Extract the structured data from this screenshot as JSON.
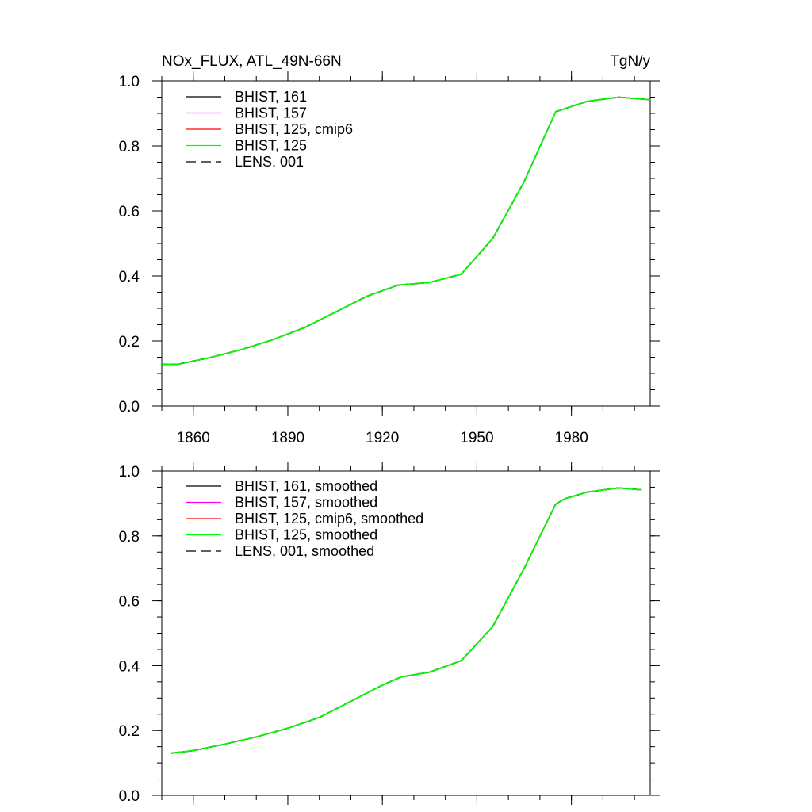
{
  "chart_data": [
    {
      "type": "line",
      "title": "NOx_FLUX, ATL_49N-66N",
      "units": "TgN/y",
      "xlabel": "",
      "ylabel": "",
      "xlim": [
        1850,
        2005
      ],
      "ylim": [
        0,
        1
      ],
      "xticks": [
        1860,
        1890,
        1920,
        1950,
        1980
      ],
      "xtick_labels": [
        "1860",
        "1890",
        "1920",
        "1950",
        "1980"
      ],
      "yticks": [
        0,
        0.2,
        0.4,
        0.6,
        0.8,
        1.0
      ],
      "ytick_labels": [
        "0.0",
        "0.2",
        "0.4",
        "0.6",
        "0.8",
        "1.0"
      ],
      "x": [
        1850,
        1855,
        1865,
        1875,
        1885,
        1895,
        1905,
        1915,
        1925,
        1935,
        1945,
        1955,
        1965,
        1975,
        1985,
        1995,
        2005
      ],
      "series": [
        {
          "name": "BHIST, 161",
          "color": "#000000",
          "dash": "solid",
          "values": [
            0.128,
            0.128,
            0.148,
            0.173,
            0.203,
            0.24,
            0.288,
            0.337,
            0.372,
            0.38,
            0.405,
            0.515,
            0.69,
            0.905,
            0.937,
            0.95,
            0.942
          ]
        },
        {
          "name": "BHIST, 157",
          "color": "#ff00ff",
          "dash": "solid",
          "values": [
            0.128,
            0.128,
            0.148,
            0.173,
            0.203,
            0.24,
            0.288,
            0.337,
            0.372,
            0.38,
            0.405,
            0.515,
            0.69,
            0.905,
            0.937,
            0.95,
            0.942
          ]
        },
        {
          "name": "BHIST, 125, cmip6",
          "color": "#ff0000",
          "dash": "solid",
          "values": [
            0.128,
            0.128,
            0.148,
            0.173,
            0.203,
            0.24,
            0.288,
            0.337,
            0.372,
            0.38,
            0.405,
            0.515,
            0.69,
            0.905,
            0.937,
            0.95,
            0.942
          ]
        },
        {
          "name": "BHIST, 125",
          "color": "#00ff00",
          "dash": "solid",
          "values": [
            0.128,
            0.128,
            0.148,
            0.173,
            0.203,
            0.24,
            0.288,
            0.337,
            0.372,
            0.38,
            0.405,
            0.515,
            0.69,
            0.905,
            0.937,
            0.95,
            0.942
          ]
        },
        {
          "name": "LENS, 001",
          "color": "#000000",
          "dash": "dashed",
          "values": [
            0.128,
            0.128,
            0.148,
            0.173,
            0.203,
            0.24,
            0.288,
            0.337,
            0.372,
            0.38,
            0.405,
            0.515,
            0.69,
            0.905,
            0.937,
            0.95,
            0.942
          ]
        }
      ]
    },
    {
      "type": "line",
      "title": "",
      "xlabel": "",
      "ylabel": "",
      "xlim": [
        1850,
        2005
      ],
      "ylim": [
        0,
        1
      ],
      "xticks": [
        1860,
        1890,
        1920,
        1950,
        1980
      ],
      "xtick_labels": [],
      "yticks": [
        0,
        0.2,
        0.4,
        0.6,
        0.8,
        1.0
      ],
      "ytick_labels": [
        "0.0",
        "0.2",
        "0.4",
        "0.6",
        "0.8",
        "1.0"
      ],
      "x": [
        1853,
        1860,
        1870,
        1880,
        1890,
        1900,
        1910,
        1920,
        1926,
        1935,
        1945,
        1955,
        1965,
        1975,
        1978,
        1985,
        1995,
        2002
      ],
      "series": [
        {
          "name": "BHIST, 161, smoothed",
          "color": "#000000",
          "dash": "solid",
          "values": [
            0.13,
            0.138,
            0.158,
            0.18,
            0.207,
            0.24,
            0.29,
            0.34,
            0.365,
            0.38,
            0.415,
            0.52,
            0.7,
            0.898,
            0.915,
            0.935,
            0.948,
            0.942
          ]
        },
        {
          "name": "BHIST, 157, smoothed",
          "color": "#ff00ff",
          "dash": "solid",
          "values": [
            0.13,
            0.138,
            0.158,
            0.18,
            0.207,
            0.24,
            0.29,
            0.34,
            0.365,
            0.38,
            0.415,
            0.52,
            0.7,
            0.898,
            0.915,
            0.935,
            0.948,
            0.942
          ]
        },
        {
          "name": "BHIST, 125, cmip6, smoothed",
          "color": "#ff0000",
          "dash": "solid",
          "values": [
            0.13,
            0.138,
            0.158,
            0.18,
            0.207,
            0.24,
            0.29,
            0.34,
            0.365,
            0.38,
            0.415,
            0.52,
            0.7,
            0.898,
            0.915,
            0.935,
            0.948,
            0.942
          ]
        },
        {
          "name": "BHIST, 125, smoothed",
          "color": "#00ff00",
          "dash": "solid",
          "values": [
            0.13,
            0.138,
            0.158,
            0.18,
            0.207,
            0.24,
            0.29,
            0.34,
            0.365,
            0.38,
            0.415,
            0.52,
            0.7,
            0.898,
            0.915,
            0.935,
            0.948,
            0.942
          ]
        },
        {
          "name": "LENS, 001, smoothed",
          "color": "#000000",
          "dash": "dashed",
          "values": [
            0.13,
            0.138,
            0.158,
            0.18,
            0.207,
            0.24,
            0.29,
            0.34,
            0.365,
            0.38,
            0.415,
            0.52,
            0.7,
            0.898,
            0.915,
            0.935,
            0.948,
            0.942
          ]
        }
      ]
    }
  ]
}
